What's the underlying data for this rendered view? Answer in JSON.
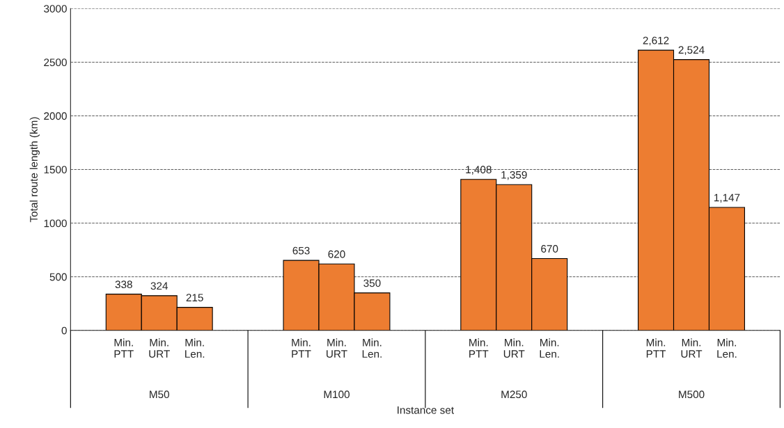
{
  "chart_data": {
    "type": "bar",
    "xlabel": "Instance set",
    "ylabel": "Total route length (km)",
    "categories": [
      "M50",
      "M100",
      "M250",
      "M500"
    ],
    "series": [
      {
        "name": "Min.\nPTT",
        "color": "#ed7d31",
        "values": [
          338,
          653,
          1408,
          2612
        ],
        "value_labels": [
          "338",
          "653",
          "1,408",
          "2,612"
        ]
      },
      {
        "name": "Min.\nURT",
        "color": "#ed7d31",
        "values": [
          324,
          620,
          1359,
          2524
        ],
        "value_labels": [
          "324",
          "620",
          "1,359",
          "2,524"
        ]
      },
      {
        "name": "Min.\nLen.",
        "color": "#ed7d31",
        "values": [
          215,
          350,
          670,
          1147
        ],
        "value_labels": [
          "215",
          "350",
          "670",
          "1,147"
        ]
      }
    ],
    "ylim": [
      0,
      3000
    ],
    "yticks": [
      0,
      500,
      1000,
      1500,
      2000,
      2500,
      3000
    ],
    "grid": "y"
  }
}
